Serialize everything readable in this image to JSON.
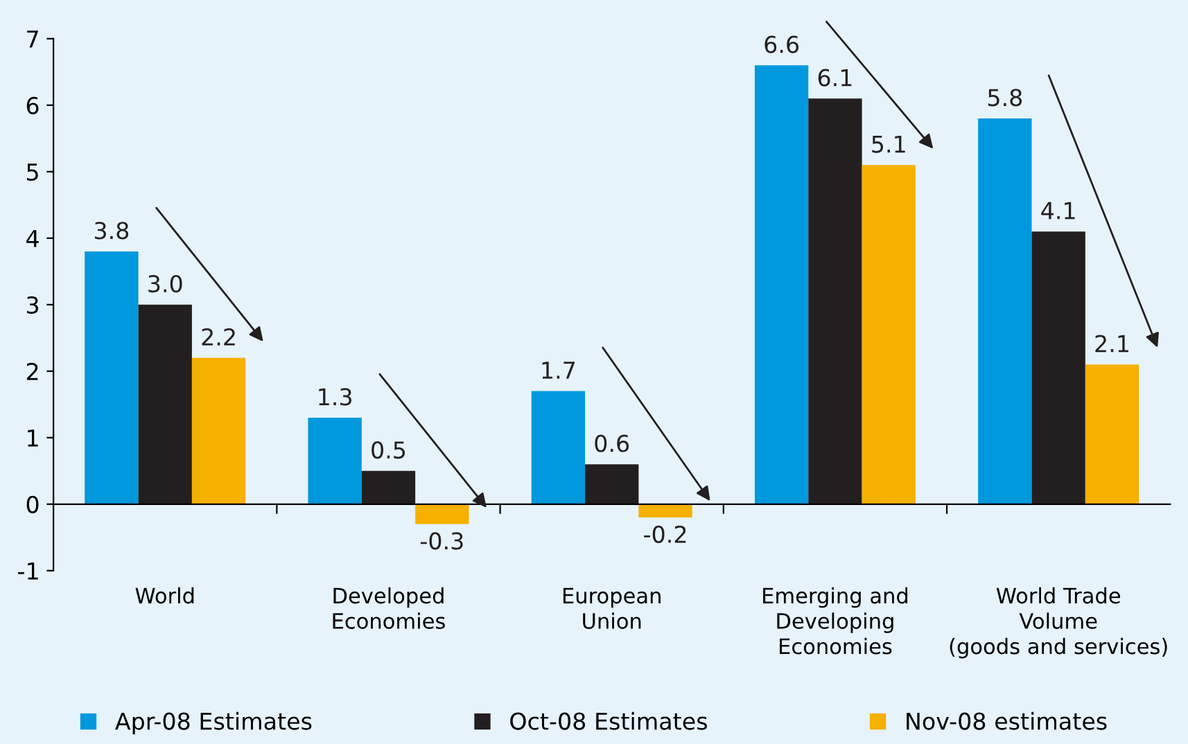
{
  "chart_data": {
    "type": "bar",
    "categories": [
      "World",
      "Developed\nEconomies",
      "European\nUnion",
      "Emerging and\nDeveloping\nEconomies",
      "World Trade\nVolume\n(goods and services)"
    ],
    "series": [
      {
        "name": "Apr-08 Estimates",
        "color": "#0099dd",
        "values": [
          3.8,
          1.3,
          1.7,
          6.6,
          5.8
        ],
        "value_labels": [
          "3.8",
          "1.3",
          "1.7",
          "6.6",
          "5.8"
        ]
      },
      {
        "name": "Oct-08 Estimates",
        "color": "#231f20",
        "values": [
          3.0,
          0.5,
          0.6,
          6.1,
          4.1
        ],
        "value_labels": [
          "3.0",
          "0.5",
          "0.6",
          "6.1",
          "4.1"
        ]
      },
      {
        "name": "Nov-08 estimates",
        "color": "#f5b000",
        "values": [
          2.2,
          -0.3,
          -0.2,
          5.1,
          2.1
        ],
        "value_labels": [
          "2.2",
          "-0.3",
          "-0.2",
          "5.1",
          "2.1"
        ]
      }
    ],
    "ylim": [
      -1,
      7
    ],
    "yticks": [
      -1,
      0,
      1,
      2,
      3,
      4,
      5,
      6,
      7
    ],
    "legend": "bottom"
  }
}
